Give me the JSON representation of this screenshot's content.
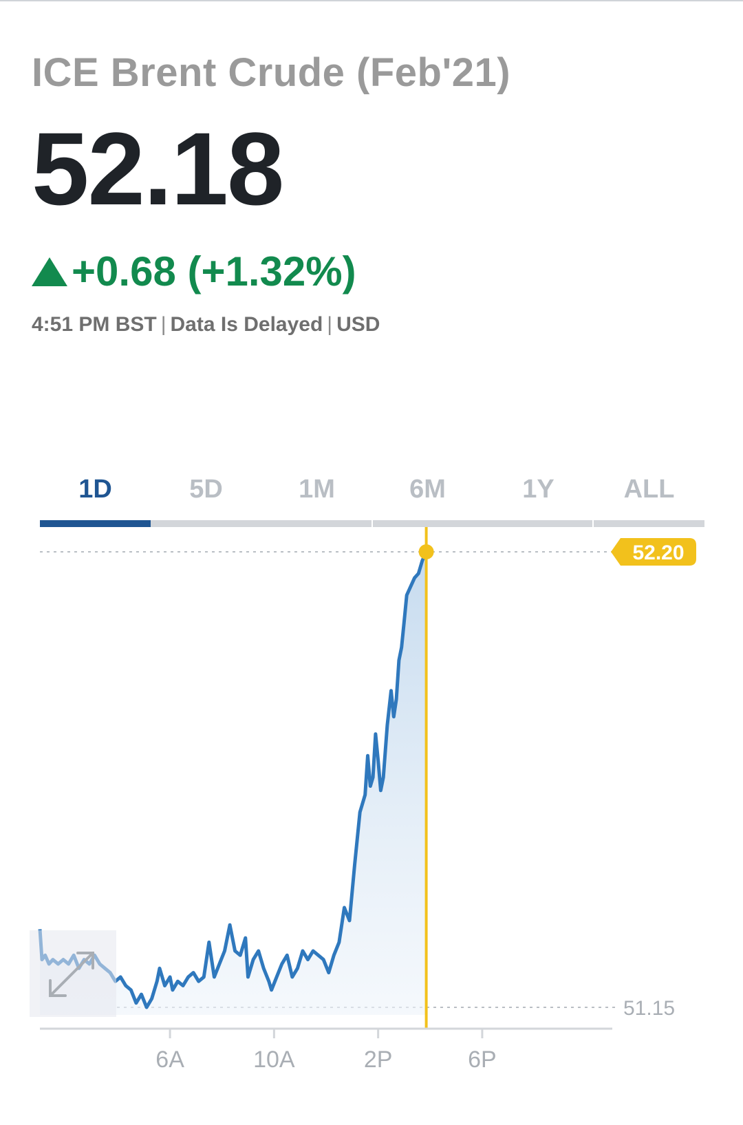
{
  "header": {
    "title": "ICE Brent Crude (Feb'21)",
    "price": "52.18",
    "change": "+0.68 (+1.32%)",
    "change_direction_icon": "triangle-up-icon",
    "time": "4:51 PM BST",
    "delay_note": "Data Is Delayed",
    "currency": "USD"
  },
  "tabs": [
    {
      "label": "1D",
      "active": true
    },
    {
      "label": "5D",
      "active": false
    },
    {
      "label": "1M",
      "active": false
    },
    {
      "label": "6M",
      "active": false
    },
    {
      "label": "1Y",
      "active": false
    },
    {
      "label": "ALL",
      "active": false
    }
  ],
  "colors": {
    "line": "#2f78bd",
    "fill": "#c9def0",
    "crosshair": "#f2c11c",
    "positive": "#128a4e",
    "active_tab": "#1f5592"
  },
  "expand_icon": "expand-arrows-icon",
  "chart_data": {
    "type": "area",
    "x_unit": "hour",
    "xlim": [
      1,
      23
    ],
    "ylim": [
      51.15,
      52.2
    ],
    "x_ticks": [
      {
        "value": 6,
        "label": "6A"
      },
      {
        "value": 10,
        "label": "10A"
      },
      {
        "value": 14,
        "label": "2P"
      },
      {
        "value": 18,
        "label": "6P"
      }
    ],
    "high_label": "52.20",
    "low_label": "51.15",
    "crosshair_x": 15.85,
    "crosshair_value": "52.20",
    "x": [
      1.0,
      1.08,
      1.2,
      1.35,
      1.5,
      1.7,
      1.9,
      2.1,
      2.3,
      2.5,
      2.7,
      2.9,
      3.1,
      3.3,
      3.5,
      3.7,
      3.9,
      4.1,
      4.3,
      4.5,
      4.7,
      4.9,
      5.1,
      5.3,
      5.5,
      5.6,
      5.8,
      6.0,
      6.1,
      6.3,
      6.5,
      6.7,
      6.9,
      7.1,
      7.3,
      7.5,
      7.7,
      7.9,
      8.1,
      8.3,
      8.5,
      8.7,
      8.9,
      9.0,
      9.2,
      9.4,
      9.6,
      9.8,
      9.9,
      10.1,
      10.3,
      10.5,
      10.7,
      10.9,
      11.1,
      11.3,
      11.5,
      11.7,
      11.9,
      12.1,
      12.3,
      12.5,
      12.7,
      12.9,
      13.1,
      13.3,
      13.5,
      13.6,
      13.7,
      13.8,
      13.9,
      14.0,
      14.1,
      14.2,
      14.35,
      14.5,
      14.6,
      14.7,
      14.8,
      14.9,
      15.0,
      15.1,
      15.25,
      15.4,
      15.55,
      15.7,
      15.85
    ],
    "y": [
      51.33,
      51.26,
      51.27,
      51.25,
      51.26,
      51.25,
      51.26,
      51.25,
      51.27,
      51.24,
      51.26,
      51.25,
      51.27,
      51.25,
      51.24,
      51.23,
      51.21,
      51.22,
      51.2,
      51.19,
      51.16,
      51.18,
      51.15,
      51.17,
      51.21,
      51.24,
      51.2,
      51.22,
      51.19,
      51.21,
      51.2,
      51.22,
      51.23,
      51.21,
      51.22,
      51.3,
      51.22,
      51.25,
      51.28,
      51.34,
      51.28,
      51.27,
      51.31,
      51.22,
      51.26,
      51.28,
      51.24,
      51.21,
      51.19,
      51.22,
      51.25,
      51.27,
      51.22,
      51.24,
      51.28,
      51.26,
      51.28,
      51.27,
      51.26,
      51.23,
      51.27,
      51.3,
      51.38,
      51.35,
      51.48,
      51.6,
      51.64,
      51.73,
      51.66,
      51.68,
      51.78,
      51.72,
      51.65,
      51.68,
      51.8,
      51.88,
      51.82,
      51.86,
      51.95,
      51.98,
      52.04,
      52.1,
      52.12,
      52.14,
      52.15,
      52.18,
      52.2
    ]
  }
}
